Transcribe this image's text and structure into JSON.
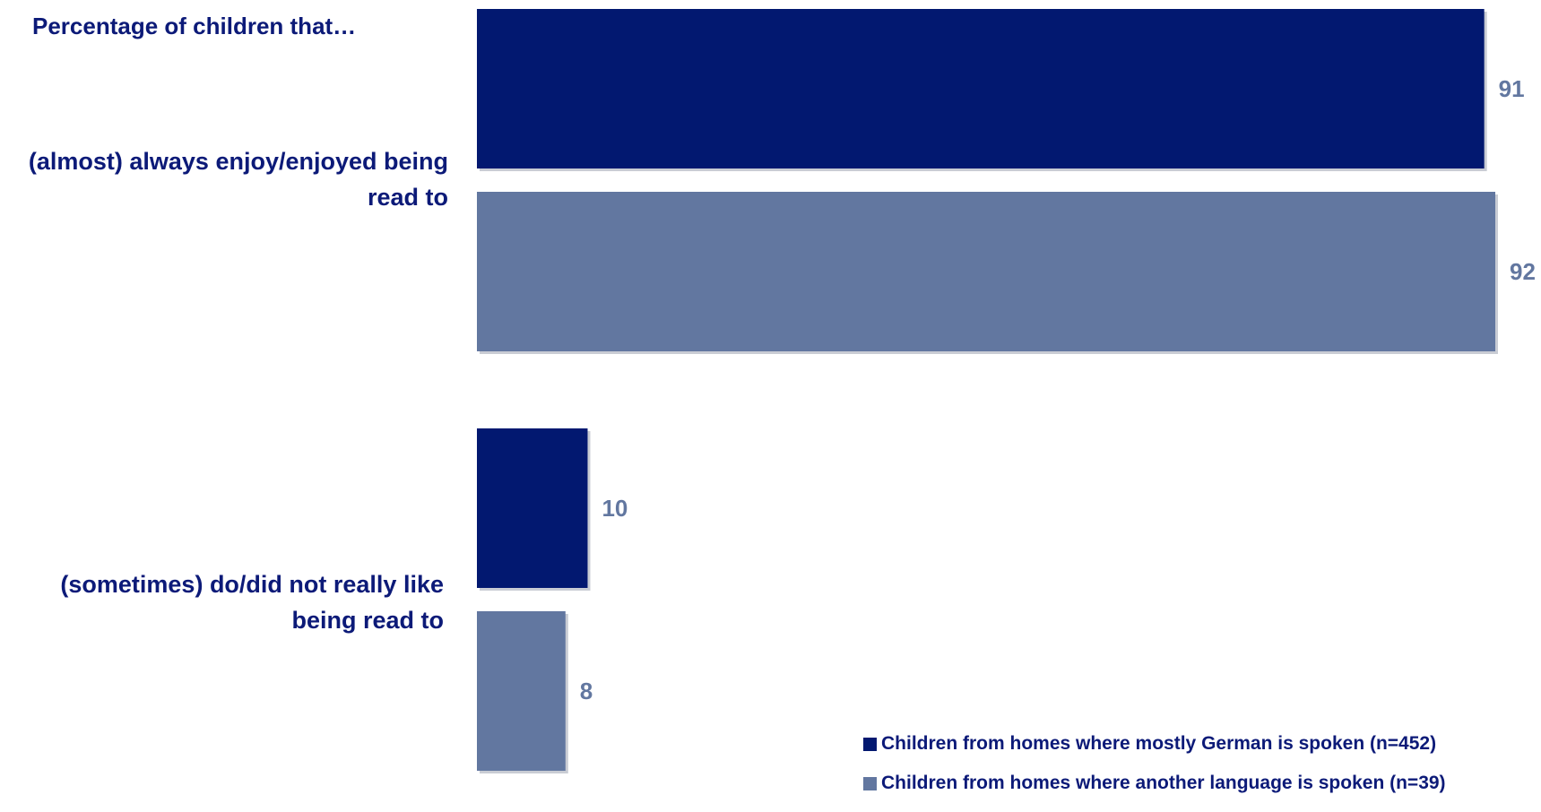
{
  "chart_data": {
    "type": "bar",
    "orientation": "horizontal",
    "title": "Percentage of children that…",
    "categories": [
      [
        "(almost) always enjoy/enjoyed being",
        "read to"
      ],
      [
        "(sometimes) do/did not really like",
        "being read to"
      ]
    ],
    "series": [
      {
        "name": "Children from homes where mostly German is spoken (n=452)",
        "color": "#021870",
        "values": [
          91,
          10
        ]
      },
      {
        "name": "Children from homes where another language is spoken (n=39)",
        "color": "#6277a0",
        "values": [
          92,
          8
        ]
      }
    ],
    "value_labels": true,
    "value_label_color": "#6277a0",
    "title_color": "#0c1a78",
    "xlim": [
      0,
      92
    ],
    "grid": false,
    "legend_position": "bottom-right"
  }
}
